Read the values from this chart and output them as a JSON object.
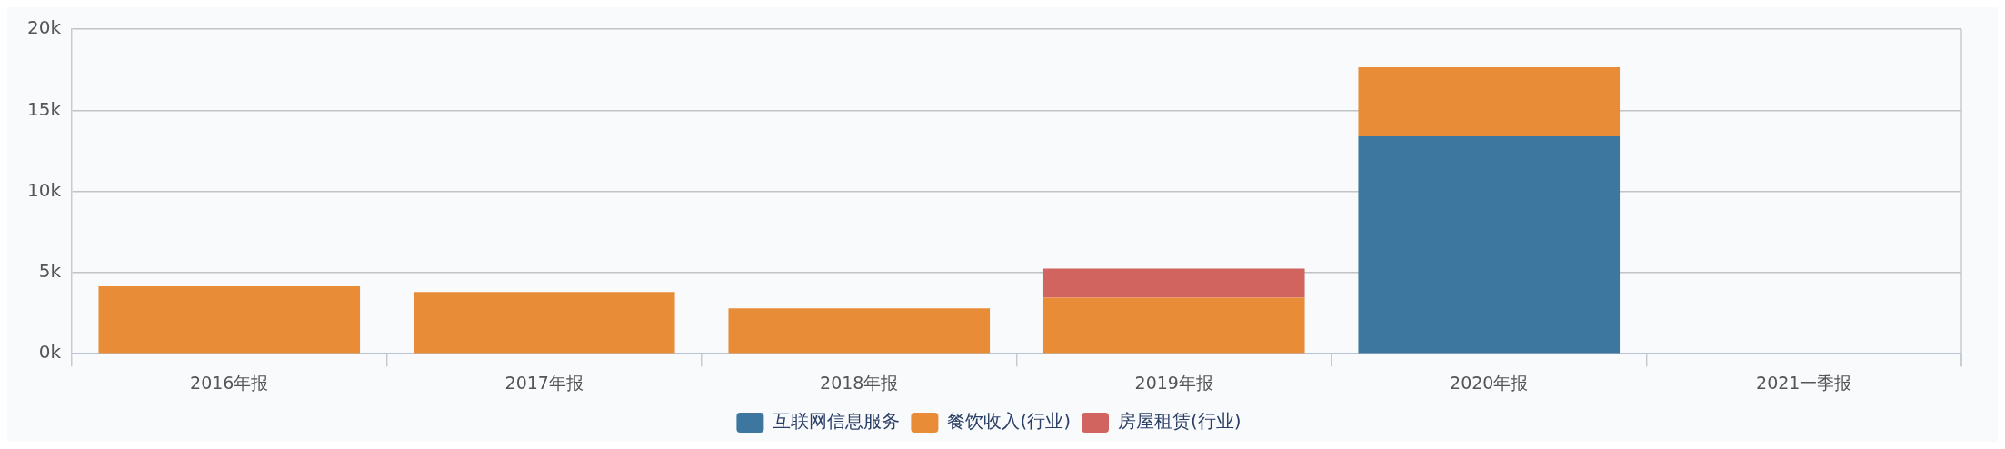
{
  "chart_data": {
    "type": "bar",
    "stacked": true,
    "categories": [
      "2016年报",
      "2017年报",
      "2018年报",
      "2019年报",
      "2020年报",
      "2021一季报"
    ],
    "series": [
      {
        "name": "互联网信息服务",
        "color": "#3d769e",
        "values": [
          null,
          null,
          null,
          null,
          13400,
          null
        ]
      },
      {
        "name": "餐饮收入(行业)",
        "color": "#e88c38",
        "values": [
          4150,
          3800,
          2800,
          3450,
          4250,
          null
        ]
      },
      {
        "name": "房屋租赁(行业)",
        "color": "#d2645f",
        "values": [
          null,
          null,
          null,
          1800,
          null,
          null
        ]
      }
    ],
    "ylim": [
      0,
      20000
    ],
    "yticks": [
      {
        "value": 0,
        "label": "0k"
      },
      {
        "value": 5000,
        "label": "5k"
      },
      {
        "value": 10000,
        "label": "10k"
      },
      {
        "value": 15000,
        "label": "15k"
      },
      {
        "value": 20000,
        "label": "20k"
      }
    ],
    "grid": "y",
    "legend": "bottom"
  }
}
